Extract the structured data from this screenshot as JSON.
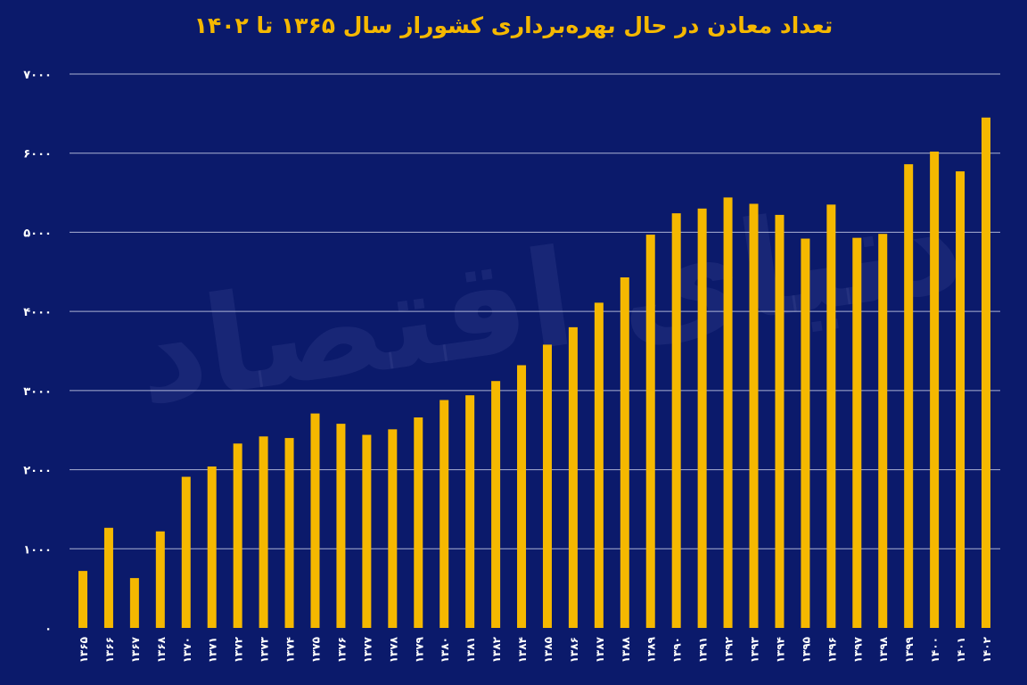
{
  "chart_data": {
    "type": "bar",
    "title": "تعداد معادن در حال بهره‌برداری کشوراز سال ۱۳۶۵ تا ۱۴۰۲",
    "xlabel": "",
    "ylabel": "",
    "ylim": [
      0,
      7000
    ],
    "yticks": [
      0,
      1000,
      2000,
      3000,
      4000,
      5000,
      6000,
      7000
    ],
    "ytick_labels": [
      "۰",
      "۱۰۰۰",
      "۲۰۰۰",
      "۳۰۰۰",
      "۴۰۰۰",
      "۵۰۰۰",
      "۶۰۰۰",
      "۷۰۰۰"
    ],
    "grid": true,
    "bar_color": "#f5b800",
    "categories": [
      "۱۳۶۵",
      "۱۳۶۶",
      "۱۳۶۷",
      "۱۳۶۸",
      "۱۳۷۰",
      "۱۳۷۱",
      "۱۳۷۲",
      "۱۳۷۳",
      "۱۳۷۴",
      "۱۳۷۵",
      "۱۳۷۶",
      "۱۳۷۷",
      "۱۳۷۸",
      "۱۳۷۹",
      "۱۳۸۰",
      "۱۳۸۱",
      "۱۳۸۲",
      "۱۳۸۴",
      "۱۳۸۵",
      "۱۳۸۶",
      "۱۳۸۷",
      "۱۳۸۸",
      "۱۳۸۹",
      "۱۳۹۰",
      "۱۳۹۱",
      "۱۳۹۲",
      "۱۳۹۳",
      "۱۳۹۴",
      "۱۳۹۵",
      "۱۳۹۶",
      "۱۳۹۷",
      "۱۳۹۸",
      "۱۳۹۹",
      "۱۴۰۰",
      "۱۴۰۱",
      "۱۴۰۲"
    ],
    "values": [
      720,
      1265,
      630,
      1220,
      1910,
      2040,
      2330,
      2420,
      2400,
      2710,
      2580,
      2440,
      2510,
      2660,
      2880,
      2940,
      3120,
      3320,
      3580,
      3800,
      4110,
      4430,
      4970,
      5240,
      5300,
      5440,
      5360,
      5220,
      4920,
      5350,
      4930,
      4980,
      5860,
      6020,
      5770,
      6450
    ]
  },
  "watermark": "دنیای اقتصاد"
}
